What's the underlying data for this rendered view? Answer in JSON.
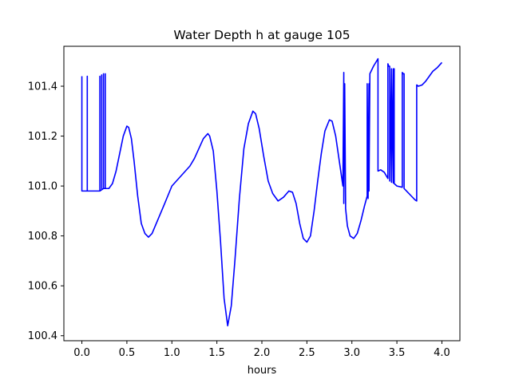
{
  "chart_data": {
    "type": "line",
    "title": "Water Depth h at gauge 105",
    "xlabel": "hours",
    "ylabel": "",
    "xlim": [
      -0.2,
      4.2
    ],
    "ylim": [
      100.38,
      101.56
    ],
    "grid": false,
    "legend": "none",
    "x_ticks": [
      0.0,
      0.5,
      1.0,
      1.5,
      2.0,
      2.5,
      3.0,
      3.5,
      4.0
    ],
    "x_tick_labels": [
      "0.0",
      "0.5",
      "1.0",
      "1.5",
      "2.0",
      "2.5",
      "3.0",
      "3.5",
      "4.0"
    ],
    "y_ticks": [
      100.4,
      100.6,
      100.8,
      101.0,
      101.2,
      101.4
    ],
    "y_tick_labels": [
      "100.4",
      "100.6",
      "100.8",
      "101.0",
      "101.2",
      "101.4"
    ],
    "series": [
      {
        "name": "",
        "color": "#0000ff",
        "x": [
          0.0,
          0.0,
          0.0,
          0.06,
          0.06,
          0.06,
          0.2,
          0.2,
          0.2,
          0.22,
          0.22,
          0.22,
          0.24,
          0.24,
          0.24,
          0.26,
          0.26,
          0.26,
          0.3,
          0.34,
          0.38,
          0.42,
          0.46,
          0.5,
          0.52,
          0.55,
          0.58,
          0.62,
          0.66,
          0.7,
          0.74,
          0.78,
          0.85,
          0.92,
          1.0,
          1.1,
          1.2,
          1.25,
          1.3,
          1.35,
          1.4,
          1.42,
          1.46,
          1.5,
          1.54,
          1.58,
          1.62,
          1.66,
          1.7,
          1.75,
          1.8,
          1.85,
          1.9,
          1.93,
          1.97,
          2.02,
          2.07,
          2.12,
          2.18,
          2.24,
          2.3,
          2.34,
          2.38,
          2.42,
          2.46,
          2.5,
          2.54,
          2.58,
          2.62,
          2.66,
          2.7,
          2.75,
          2.78,
          2.82,
          2.86,
          2.9,
          2.91,
          2.91,
          2.92,
          2.93,
          2.93,
          2.95,
          2.98,
          3.02,
          3.06,
          3.1,
          3.14,
          3.17,
          3.17,
          3.18,
          3.19,
          3.19,
          3.2,
          3.2,
          3.24,
          3.29,
          3.29,
          3.32,
          3.36,
          3.4,
          3.4,
          3.41,
          3.42,
          3.42,
          3.44,
          3.44,
          3.46,
          3.46,
          3.47,
          3.47,
          3.5,
          3.56,
          3.56,
          3.57,
          3.58,
          3.58,
          3.62,
          3.66,
          3.7,
          3.72,
          3.72,
          3.74,
          3.78,
          3.82,
          3.86,
          3.9,
          3.95,
          4.0
        ],
        "values": [
          101.44,
          100.98,
          100.98,
          100.98,
          101.44,
          100.98,
          100.98,
          101.44,
          100.98,
          100.985,
          101.445,
          100.985,
          100.99,
          101.45,
          100.99,
          100.99,
          101.45,
          100.99,
          100.99,
          101.01,
          101.06,
          101.13,
          101.2,
          101.24,
          101.235,
          101.19,
          101.1,
          100.96,
          100.85,
          100.81,
          100.795,
          100.81,
          100.87,
          100.93,
          101.0,
          101.04,
          101.08,
          101.11,
          101.15,
          101.19,
          101.21,
          101.2,
          101.14,
          100.98,
          100.78,
          100.55,
          100.44,
          100.52,
          100.7,
          100.95,
          101.15,
          101.25,
          101.3,
          101.29,
          101.23,
          101.12,
          101.02,
          100.97,
          100.94,
          100.955,
          100.98,
          100.975,
          100.93,
          100.85,
          100.79,
          100.775,
          100.8,
          100.9,
          101.02,
          101.13,
          101.22,
          101.265,
          101.26,
          101.2,
          101.1,
          101.0,
          101.455,
          100.93,
          101.41,
          100.93,
          100.91,
          100.84,
          100.8,
          100.79,
          100.81,
          100.86,
          100.92,
          100.96,
          101.41,
          100.95,
          101.41,
          100.98,
          101.45,
          101.45,
          101.48,
          101.51,
          101.06,
          101.065,
          101.055,
          101.03,
          101.49,
          101.48,
          101.48,
          101.02,
          101.47,
          101.015,
          101.47,
          101.012,
          101.47,
          101.01,
          101.0,
          100.995,
          101.455,
          101.45,
          101.45,
          100.99,
          100.975,
          100.96,
          100.945,
          100.94,
          101.405,
          101.4,
          101.405,
          101.42,
          101.44,
          101.46,
          101.475,
          101.495
        ]
      }
    ]
  }
}
